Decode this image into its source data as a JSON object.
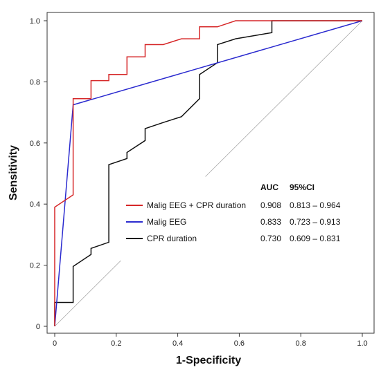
{
  "chart_data": {
    "type": "line",
    "xlabel": "1-Specificity",
    "ylabel": "Sensitivity",
    "xlim": [
      0,
      1
    ],
    "ylim": [
      0,
      1
    ],
    "x_ticks": [
      "0",
      "0.2",
      "0.4",
      "0.6",
      "0.8",
      "1.0"
    ],
    "y_ticks": [
      "0",
      "0.2",
      "0.4",
      "0.6",
      "0.8",
      "1.0"
    ],
    "grid": false,
    "legend_placement": "center-right",
    "reference_line": "diagonal",
    "table_headers": {
      "auc": "AUC",
      "ci": "95%CI"
    },
    "series": [
      {
        "name": "Malig EEG + CPR duration",
        "color": "#d62728",
        "auc": "0.908",
        "ci": "0.813 – 0.964",
        "points": [
          [
            0,
            0
          ],
          [
            0,
            0.39
          ],
          [
            0.06,
            0.43
          ],
          [
            0.06,
            0.745
          ],
          [
            0.118,
            0.745
          ],
          [
            0.118,
            0.804
          ],
          [
            0.176,
            0.804
          ],
          [
            0.176,
            0.824
          ],
          [
            0.235,
            0.824
          ],
          [
            0.235,
            0.882
          ],
          [
            0.294,
            0.882
          ],
          [
            0.294,
            0.922
          ],
          [
            0.353,
            0.922
          ],
          [
            0.412,
            0.941
          ],
          [
            0.471,
            0.941
          ],
          [
            0.471,
            0.98
          ],
          [
            0.529,
            0.98
          ],
          [
            0.588,
            1.0
          ],
          [
            1.0,
            1.0
          ]
        ]
      },
      {
        "name": "Malig EEG",
        "color": "#2a2acf",
        "auc": "0.833",
        "ci": "0.723 – 0.913",
        "points": [
          [
            0,
            0
          ],
          [
            0.06,
            0.725
          ],
          [
            1.0,
            1.0
          ]
        ]
      },
      {
        "name": "CPR duration",
        "color": "#111111",
        "auc": "0.730",
        "ci": "0.609 – 0.831",
        "points": [
          [
            0,
            0
          ],
          [
            0,
            0.078
          ],
          [
            0.06,
            0.078
          ],
          [
            0.06,
            0.196
          ],
          [
            0.118,
            0.235
          ],
          [
            0.118,
            0.255
          ],
          [
            0.176,
            0.275
          ],
          [
            0.176,
            0.529
          ],
          [
            0.235,
            0.549
          ],
          [
            0.235,
            0.569
          ],
          [
            0.294,
            0.608
          ],
          [
            0.294,
            0.647
          ],
          [
            0.353,
            0.667
          ],
          [
            0.412,
            0.686
          ],
          [
            0.471,
            0.745
          ],
          [
            0.471,
            0.824
          ],
          [
            0.529,
            0.863
          ],
          [
            0.529,
            0.922
          ],
          [
            0.588,
            0.941
          ],
          [
            0.706,
            0.961
          ],
          [
            0.706,
            1.0
          ],
          [
            1.0,
            1.0
          ]
        ]
      }
    ]
  }
}
